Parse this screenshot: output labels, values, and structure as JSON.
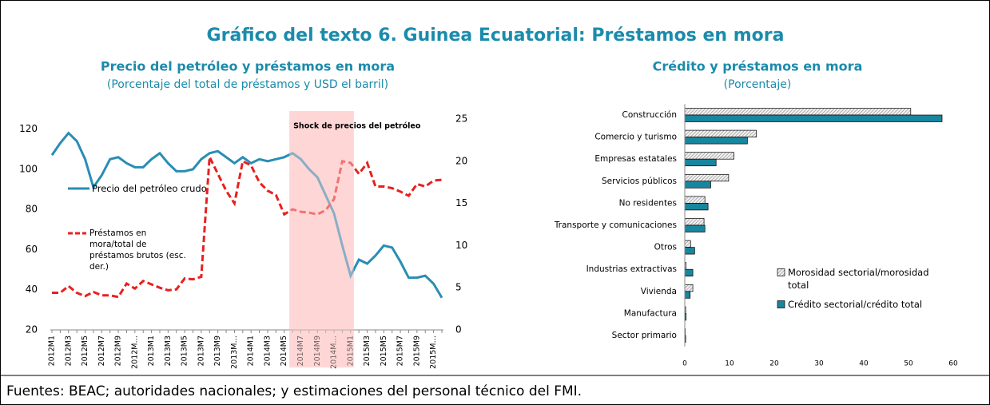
{
  "title": "Gráfico del texto 6. Guinea Ecuatorial: Préstamos en mora",
  "source": "Fuentes: BEAC; autoridades nacionales; y estimaciones del personal técnico del FMI.",
  "chart_data": [
    {
      "type": "line",
      "title": "Precio del petróleo y préstamos en mora",
      "subtitle": "(Porcentaje del total de préstamos y USD el barril)",
      "categories": [
        "2012M1",
        null,
        "2012M3",
        null,
        "2012M5",
        null,
        "2012M7",
        null,
        "2012M9",
        null,
        "2012M…",
        null,
        "2013M1",
        null,
        "2013M3",
        null,
        "2013M5",
        null,
        "2013M7",
        null,
        "2013M9",
        null,
        "2013M…",
        null,
        "2014M1",
        null,
        "2014M3",
        null,
        "2014M5",
        null,
        "2014M7",
        null,
        "2014M9",
        null,
        "2014M…",
        null,
        "2015M1",
        null,
        "2015M3",
        null,
        "2015M5",
        null,
        "2015M7",
        null,
        "2015M9",
        null,
        "2015M…",
        null
      ],
      "series": [
        {
          "name": "Precio del petróleo crudo",
          "color": "#2a8db4",
          "style": "solid",
          "axis": "y",
          "values": [
            107,
            113,
            118,
            114,
            105,
            91,
            97,
            105,
            106,
            103,
            101,
            101,
            105,
            108,
            103,
            99,
            99,
            100,
            105,
            108,
            109,
            106,
            103,
            106,
            103,
            105,
            104,
            105,
            106,
            108,
            105,
            100,
            96,
            87,
            78,
            62,
            47,
            55,
            53,
            57,
            62,
            61,
            54,
            46,
            46,
            47,
            43,
            36
          ]
        },
        {
          "name": "Préstamos en mora/total de préstamos brutos (esc. der.)",
          "color": "#e8201f",
          "style": "dashed",
          "axis": "y2",
          "values": [
            4.4,
            4.4,
            5.2,
            4.4,
            4.0,
            4.5,
            4.1,
            4.1,
            3.9,
            5.5,
            4.9,
            5.8,
            5.4,
            5.0,
            4.7,
            4.8,
            6.1,
            6.0,
            6.3,
            20.5,
            18.5,
            16.5,
            15.0,
            20.0,
            19.5,
            17.5,
            16.5,
            16.0,
            13.7,
            14.3,
            14.0,
            13.9,
            13.7,
            14.2,
            15.5,
            20.0,
            19.8,
            18.5,
            19.8,
            17.0,
            17.0,
            16.8,
            16.4,
            15.9,
            17.3,
            17.0,
            17.7,
            17.8
          ]
        }
      ],
      "ylim": [
        20,
        125
      ],
      "yticks": [
        20,
        40,
        60,
        80,
        100,
        120
      ],
      "y2lim": [
        0,
        25
      ],
      "y2ticks": [
        0,
        5,
        10,
        15,
        20,
        25
      ],
      "shade": {
        "label": "Shock de precios del petróleo",
        "from": 29,
        "to": 36,
        "color": "#ffd6d6"
      }
    },
    {
      "type": "barh",
      "title": "Crédito y préstamos en mora",
      "subtitle": "(Porcentaje)",
      "categories": [
        "Construcción",
        "Comercio y turismo",
        "Empresas estatales",
        "Servicios públicos",
        "No residentes",
        "Transporte y comunicaciones",
        "Otros",
        "Industrias extractivas",
        "Vivienda",
        "Manufactura",
        "Sector primario"
      ],
      "series": [
        {
          "name": "Morosidad sectorial/morosidad total",
          "color": "#d9d9d9",
          "hatch": true,
          "values": [
            50.5,
            16,
            11,
            9.8,
            4.5,
            4.3,
            1.3,
            0.3,
            1.8,
            0.2,
            0.1
          ]
        },
        {
          "name": "Crédito sectorial/crédito total",
          "color": "#17869e",
          "values": [
            57.5,
            14,
            7,
            5.8,
            5.2,
            4.5,
            2.2,
            1.8,
            1.2,
            0.3,
            0.2
          ]
        }
      ],
      "xlim": [
        0,
        60
      ],
      "xticks": [
        0,
        10,
        20,
        30,
        40,
        50,
        60
      ]
    }
  ]
}
